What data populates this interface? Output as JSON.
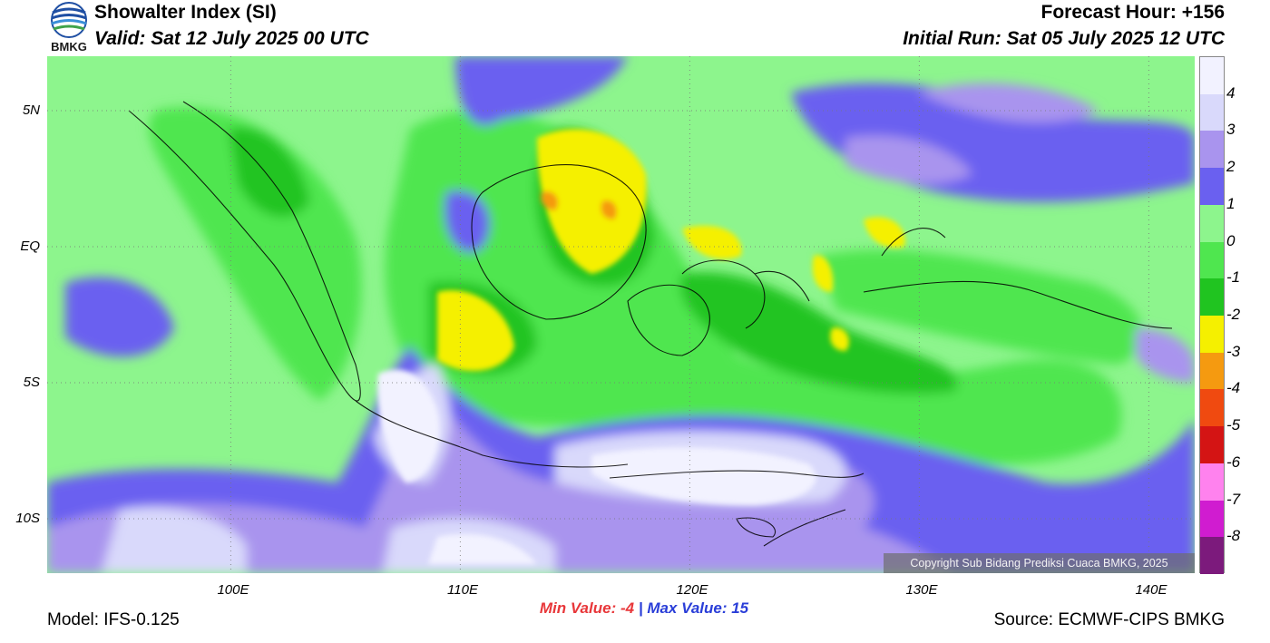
{
  "header": {
    "title": "Showalter Index (SI)",
    "valid": "Valid: Sat 12 July 2025 00 UTC",
    "forecast_hour": "Forecast Hour: +156",
    "initial_run": "Initial Run: Sat 05 July 2025 12 UTC"
  },
  "logo": {
    "text": "BMKG",
    "icon": "bmkg-logo-icon"
  },
  "map": {
    "lat_labels": [
      "5N",
      "EQ",
      "5S",
      "10S"
    ],
    "lon_labels": [
      "100E",
      "110E",
      "120E",
      "130E",
      "140E"
    ],
    "lat_values": [
      5,
      0,
      -5,
      -10
    ],
    "lon_values": [
      100,
      110,
      120,
      130,
      140
    ],
    "lon_range": [
      92,
      142
    ],
    "lat_range": [
      -12,
      7
    ],
    "gridlines": true
  },
  "colorbar": {
    "labels": [
      "4",
      "3",
      "2",
      "1",
      "0",
      "-1",
      "-2",
      "-3",
      "-4",
      "-5",
      "-6",
      "-7",
      "-8"
    ],
    "colors": [
      "#f2f2ff",
      "#d9d9fb",
      "#a994ee",
      "#6a60f0",
      "#8df58d",
      "#4fe64f",
      "#20c420",
      "#f5f000",
      "#f59a10",
      "#f04a10",
      "#d41414",
      "#ff82ee",
      "#d01cd0",
      "#7c1a7c"
    ]
  },
  "stats": {
    "min_label": "Min Value:  -4",
    "separator": "|",
    "max_label": "Max Value:  15"
  },
  "footer": {
    "model": "Model: IFS-0.125",
    "source": "Source: ECMWF-CIPS BMKG",
    "copyright": "Copyright Sub Bidang Prediksi Cuaca BMKG, 2025"
  }
}
